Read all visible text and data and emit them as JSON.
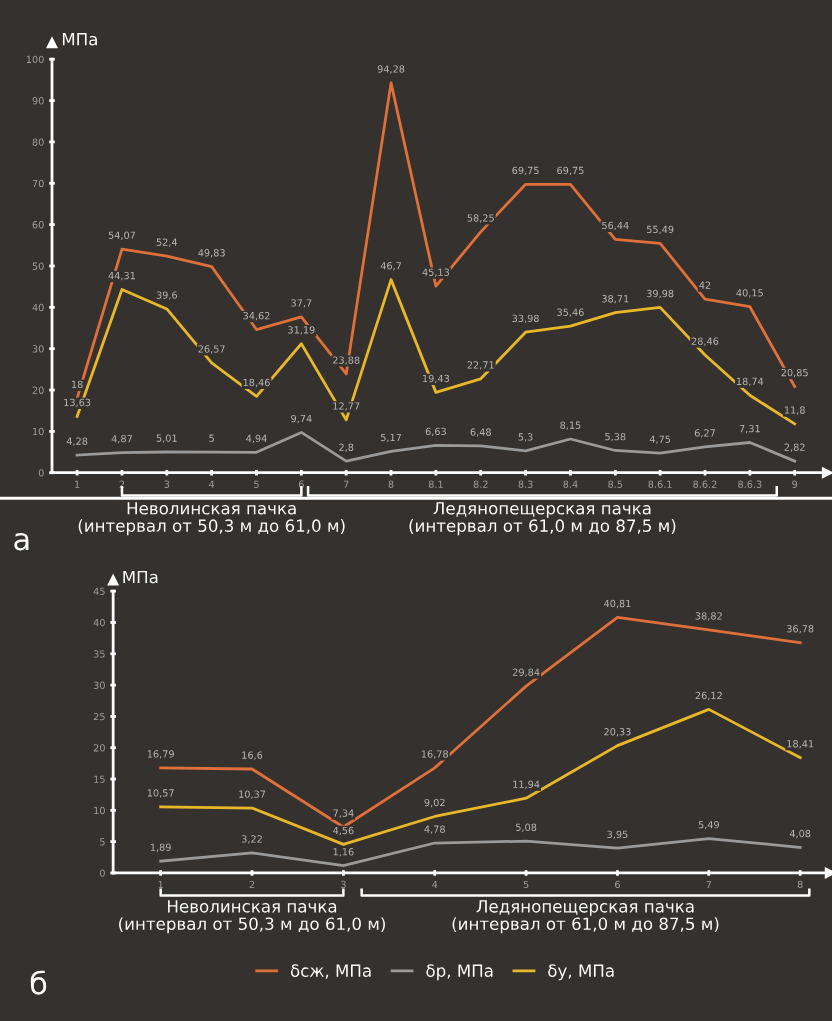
{
  "chart_data": [
    {
      "type": "line",
      "ylabel": "МПа",
      "categories": [
        "1",
        "2",
        "3",
        "4",
        "5",
        "6",
        "7",
        "8",
        "8.1",
        "8.2",
        "8.3",
        "8.4",
        "8.5",
        "8.6.1",
        "8.6.2",
        "8.6.3",
        "9"
      ],
      "series": [
        {
          "color": "#e0703a",
          "values": [
            18,
            54.07,
            52.4,
            49.83,
            34.62,
            37.7,
            23.88,
            94.28,
            45.13,
            58.25,
            69.75,
            69.75,
            56.44,
            55.49,
            42,
            40.15,
            20.85
          ],
          "value_labels": [
            "18",
            "54,07",
            "52,4",
            "49,83",
            "34,62",
            "37,7",
            "23,88",
            "94,28",
            "45,13",
            "58,25",
            "69,75",
            "69,75",
            "56,44",
            "55,49",
            "42",
            "40,15",
            "20,85"
          ]
        },
        {
          "color": "#9a9a9a",
          "values": [
            4.28,
            4.87,
            5.01,
            5,
            4.94,
            9.74,
            2.8,
            5.17,
            6.63,
            6.48,
            5.3,
            8.15,
            5.38,
            4.75,
            6.27,
            7.31,
            2.82
          ],
          "value_labels": [
            "4,28",
            "4,87",
            "5,01",
            "5",
            "4,94",
            "9,74",
            "2,8",
            "5,17",
            "6,63",
            "6,48",
            "5,3",
            "8,15",
            "5,38",
            "4,75",
            "6,27",
            "7,31",
            "2,82"
          ]
        },
        {
          "color": "#e8b828",
          "values": [
            13.63,
            44.31,
            39.6,
            26.57,
            18.46,
            31.19,
            12.77,
            46.7,
            19.43,
            22.71,
            33.98,
            35.46,
            38.71,
            39.98,
            28.46,
            18.74,
            11.8
          ],
          "value_labels": [
            "13,63",
            "44,31",
            "39,6",
            "26,57",
            "18,46",
            "31,19",
            "12,77",
            "46,7",
            "19,43",
            "22,71",
            "33,98",
            "35,46",
            "38,71",
            "39,98",
            "28,46",
            "18,74",
            "11,8"
          ]
        }
      ],
      "ylim": [
        0,
        100
      ],
      "yticks": [
        0,
        10,
        20,
        30,
        40,
        50,
        60,
        70,
        80,
        90,
        100
      ],
      "grid": false,
      "legend": false,
      "annotations": [
        "а",
        "Неволинская пачка\n(интервал от 50,3 м до 61,0 м)",
        "Ледянопещерская пачка\n(интервал от 61,0 м до 87,5 м)"
      ]
    },
    {
      "type": "line",
      "ylabel": "МПа",
      "categories": [
        "1",
        "2",
        "3",
        "4",
        "5",
        "6",
        "7",
        "8"
      ],
      "series": [
        {
          "name": "δсж, МПа",
          "color": "#e0703a",
          "values": [
            16.79,
            16.6,
            7.34,
            16.78,
            29.84,
            40.81,
            38.82,
            36.78
          ],
          "value_labels": [
            "16,79",
            "16,6",
            "7,34",
            "16,78",
            "29,84",
            "40,81",
            "38,82",
            "36,78"
          ]
        },
        {
          "name": "δр, МПа",
          "color": "#9a9a9a",
          "values": [
            1.89,
            3.22,
            1.16,
            4.78,
            5.08,
            3.95,
            5.49,
            4.08
          ],
          "value_labels": [
            "1,89",
            "3,22",
            "1,16",
            "4,78",
            "5,08",
            "3,95",
            "5,49",
            "4,08"
          ]
        },
        {
          "name": "δу, МПа",
          "color": "#e8b828",
          "values": [
            10.57,
            10.37,
            4.56,
            9.02,
            11.94,
            20.33,
            26.12,
            18.41
          ],
          "value_labels": [
            "10,57",
            "10,37",
            "4,56",
            "9,02",
            "11,94",
            "20,33",
            "26,12",
            "18,41"
          ]
        }
      ],
      "ylim": [
        0,
        45
      ],
      "yticks": [
        0,
        5,
        10,
        15,
        20,
        25,
        30,
        35,
        40,
        45
      ],
      "grid": false,
      "legend": "bottom",
      "annotations": [
        "б",
        "Неволинская пачка\n(интервал от 50,3 м до 61,0 м)",
        "Ледянопещерская пачка\n(интервал от 61,0 м до 87,5 м)"
      ]
    }
  ]
}
